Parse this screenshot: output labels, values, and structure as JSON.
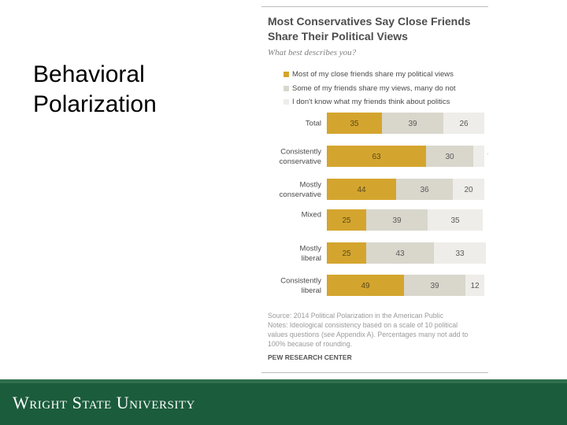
{
  "slide": {
    "title_line1": "Behavioral",
    "title_line2": "Polarization"
  },
  "chart_data": {
    "type": "bar",
    "stacked": true,
    "orientation": "horizontal",
    "title_line1": "Most Conservatives Say Close Friends",
    "title_line2": "Share Their Political Views",
    "question": "What best describes you?",
    "categories": [
      [
        "Total"
      ],
      [
        "Consistently",
        "conservative"
      ],
      [
        "Mostly",
        "conservative"
      ],
      [
        "Mixed"
      ],
      [
        "Mostly",
        "liberal"
      ],
      [
        "Consistently",
        "liberal"
      ]
    ],
    "series": [
      {
        "name": "Most of my close friends share my political views",
        "color": "#d4a52e",
        "values": [
          35,
          63,
          44,
          25,
          25,
          49
        ]
      },
      {
        "name": "Some of my friends share my views, many do not",
        "color": "#d9d6cc",
        "values": [
          39,
          30,
          36,
          39,
          43,
          39
        ]
      },
      {
        "name": "I don't know what my friends think about politics",
        "color": "#efede9",
        "values": [
          26,
          7,
          20,
          35,
          33,
          12
        ]
      }
    ],
    "legend_position": "top"
  },
  "notes": {
    "source": "Source: 2014 Political Polarization in the American Public",
    "notes_line1": "Notes: Ideological consistency based on a scale of 10 political",
    "notes_line2": "values questions (see Appendix A). Percentages many not add to",
    "notes_line3": "100% because of rounding.",
    "credit": "PEW RESEARCH CENTER"
  },
  "footer": {
    "brand": "Wright State University",
    "band_color": "#1b5c3c"
  }
}
